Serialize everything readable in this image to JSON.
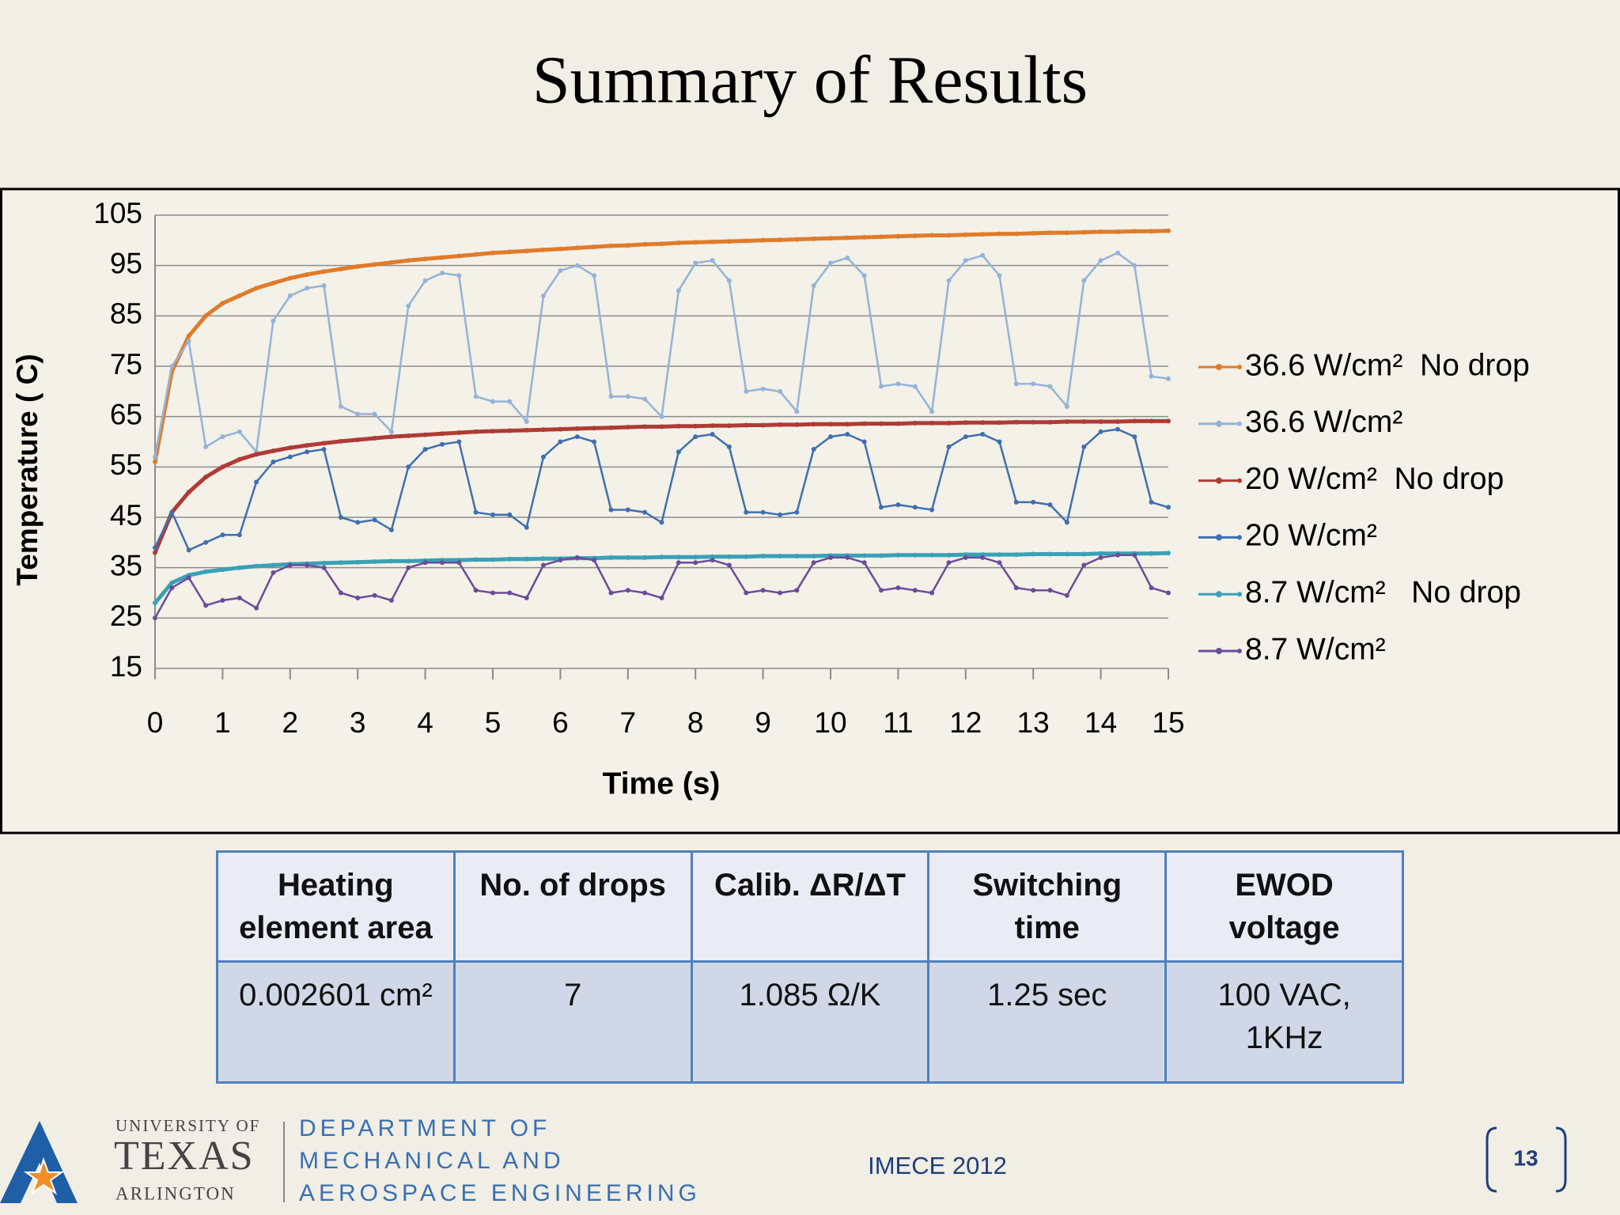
{
  "title": "Summary of Results",
  "chart_data": {
    "type": "line",
    "xlabel": "Time (s)",
    "ylabel": "Temperature ( C)",
    "xlim": [
      0,
      15
    ],
    "xticks": [
      0,
      1,
      2,
      3,
      4,
      5,
      6,
      7,
      8,
      9,
      10,
      11,
      12,
      13,
      14,
      15
    ],
    "ylim": [
      15,
      105
    ],
    "yticks": [
      15,
      25,
      35,
      45,
      55,
      65,
      75,
      85,
      95,
      105
    ],
    "grid": true,
    "legend": "right",
    "x": [
      0,
      0.25,
      0.5,
      0.75,
      1,
      1.25,
      1.5,
      1.75,
      2,
      2.25,
      2.5,
      2.75,
      3,
      3.25,
      3.5,
      3.75,
      4,
      4.25,
      4.5,
      4.75,
      5,
      5.25,
      5.5,
      5.75,
      6,
      6.25,
      6.5,
      6.75,
      7,
      7.25,
      7.5,
      7.75,
      8,
      8.25,
      8.5,
      8.75,
      9,
      9.25,
      9.5,
      9.75,
      10,
      10.25,
      10.5,
      10.75,
      11,
      11.25,
      11.5,
      11.75,
      12,
      12.25,
      12.5,
      12.75,
      13,
      13.25,
      13.5,
      13.75,
      14,
      14.25,
      14.5,
      14.75,
      15
    ],
    "series": [
      {
        "name": "36.6 W/cm²  No drop",
        "color": "#e07b2a",
        "values": [
          56,
          74,
          81,
          85,
          87.5,
          89,
          90.5,
          91.5,
          92.5,
          93.2,
          93.8,
          94.3,
          94.8,
          95.2,
          95.6,
          96,
          96.3,
          96.6,
          96.9,
          97.2,
          97.5,
          97.7,
          97.9,
          98.1,
          98.3,
          98.5,
          98.7,
          98.9,
          99,
          99.2,
          99.3,
          99.5,
          99.6,
          99.7,
          99.8,
          99.9,
          100,
          100.1,
          100.2,
          100.3,
          100.4,
          100.5,
          100.6,
          100.7,
          100.8,
          100.9,
          101,
          101,
          101.1,
          101.2,
          101.3,
          101.3,
          101.4,
          101.5,
          101.5,
          101.6,
          101.7,
          101.7,
          101.8,
          101.8,
          101.9
        ]
      },
      {
        "name": "36.6 W/cm²",
        "color": "#95b3d7",
        "values": [
          57,
          75,
          80,
          59,
          61,
          62,
          58,
          84,
          89,
          90.5,
          91,
          67,
          65.5,
          65.5,
          62,
          87,
          92,
          93.5,
          93,
          69,
          68,
          68,
          64,
          89,
          94,
          95,
          93,
          69,
          69,
          68.5,
          65,
          90,
          95.5,
          96,
          92,
          70,
          70.5,
          70,
          66,
          91,
          95.5,
          96.5,
          93,
          71,
          71.5,
          71,
          66,
          92,
          96,
          97,
          93,
          71.5,
          71.5,
          71,
          67,
          92,
          96,
          97.5,
          95,
          73,
          72.5
        ]
      },
      {
        "name": "20 W/cm²  No drop",
        "color": "#b03a35",
        "values": [
          38,
          46,
          50,
          53,
          55,
          56.5,
          57.5,
          58.2,
          58.8,
          59.3,
          59.7,
          60.1,
          60.4,
          60.7,
          61,
          61.2,
          61.4,
          61.6,
          61.8,
          62,
          62.1,
          62.2,
          62.3,
          62.4,
          62.5,
          62.6,
          62.7,
          62.8,
          62.9,
          63,
          63,
          63.1,
          63.1,
          63.2,
          63.2,
          63.3,
          63.3,
          63.4,
          63.4,
          63.5,
          63.5,
          63.5,
          63.6,
          63.6,
          63.6,
          63.7,
          63.7,
          63.7,
          63.8,
          63.8,
          63.8,
          63.9,
          63.9,
          63.9,
          64,
          64,
          64,
          64,
          64.1,
          64.1,
          64.1
        ]
      },
      {
        "name": "20 W/cm²",
        "color": "#3f6fb0",
        "values": [
          39,
          46,
          38.5,
          40,
          41.5,
          41.5,
          52,
          56,
          57,
          58,
          58.5,
          45,
          44,
          44.5,
          42.5,
          55,
          58.5,
          59.5,
          60,
          46,
          45.5,
          45.5,
          43,
          57,
          60,
          61,
          60,
          46.5,
          46.5,
          46,
          44,
          58,
          61,
          61.5,
          59,
          46,
          46,
          45.5,
          46,
          58.5,
          61,
          61.5,
          60,
          47,
          47.5,
          47,
          46.5,
          59,
          61,
          61.5,
          60,
          48,
          48,
          47.5,
          44,
          59,
          62,
          62.5,
          61,
          48,
          47
        ]
      },
      {
        "name": "8.7 W/cm²   No drop",
        "color": "#3aa0b5",
        "values": [
          28,
          32,
          33.5,
          34.2,
          34.6,
          35,
          35.3,
          35.5,
          35.7,
          35.8,
          35.9,
          36,
          36.1,
          36.2,
          36.3,
          36.3,
          36.4,
          36.5,
          36.5,
          36.6,
          36.6,
          36.7,
          36.7,
          36.8,
          36.8,
          36.9,
          36.9,
          37,
          37,
          37,
          37.1,
          37.1,
          37.1,
          37.2,
          37.2,
          37.2,
          37.3,
          37.3,
          37.3,
          37.3,
          37.4,
          37.4,
          37.4,
          37.4,
          37.5,
          37.5,
          37.5,
          37.5,
          37.6,
          37.6,
          37.6,
          37.6,
          37.7,
          37.7,
          37.7,
          37.7,
          37.8,
          37.8,
          37.8,
          37.8,
          37.9
        ]
      },
      {
        "name": "8.7 W/cm²",
        "color": "#6b4c9a",
        "values": [
          25,
          31,
          33,
          27.5,
          28.5,
          29,
          27,
          34,
          35.5,
          35.5,
          35,
          30,
          29,
          29.5,
          28.5,
          35,
          36,
          36,
          36,
          30.5,
          30,
          30,
          29,
          35.5,
          36.5,
          37,
          36.5,
          30,
          30.5,
          30,
          29,
          36,
          36,
          36.5,
          35.5,
          30,
          30.5,
          30,
          30.5,
          36,
          37,
          37,
          36,
          30.5,
          31,
          30.5,
          30,
          36,
          37,
          37,
          36,
          31,
          30.5,
          30.5,
          29.5,
          35.5,
          37,
          37.5,
          37.5,
          31,
          30
        ]
      }
    ]
  },
  "table": {
    "header": [
      "Heating\nelement area",
      "No. of drops",
      "Calib. ΔR/ΔT",
      "Switching\ntime",
      "EWOD\nvoltage"
    ],
    "rows": [
      [
        "0.002601 cm²",
        "7",
        "1.085 Ω/K",
        "1.25 sec",
        "100 VAC,\n1KHz"
      ]
    ]
  },
  "footer": {
    "university": [
      "UNIVERSITY OF",
      "TEXAS",
      "ARLINGTON"
    ],
    "department": [
      "DEPARTMENT OF",
      "MECHANICAL AND",
      "AEROSPACE ENGINEERING"
    ],
    "conference": "IMECE 2012",
    "page": "13"
  }
}
